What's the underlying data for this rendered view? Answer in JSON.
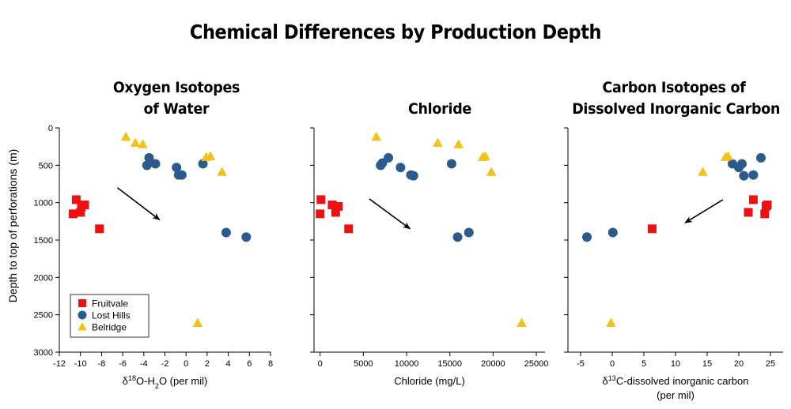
{
  "title": "Chemical Differences by Production Depth",
  "ylabel": "Depth to top of perforations (m)",
  "legend": [
    {
      "name": "Fruitvale",
      "marker": "square",
      "color": "#ee1111"
    },
    {
      "name": "Lost Hills",
      "marker": "circle",
      "color": "#2b5a8c"
    },
    {
      "name": "Belridge",
      "marker": "triangle",
      "color": "#f2c21b"
    }
  ],
  "chart_data": [
    {
      "type": "scatter",
      "title_lines": [
        "Oxygen Isotopes",
        "of Water"
      ],
      "xlabel": "δ18O-H2O (per mil)",
      "ylabel": "Depth to top of perforations (m)",
      "xlim": [
        -12,
        8
      ],
      "ylim": [
        3000,
        0
      ],
      "xticks": [
        -12,
        -10,
        -8,
        -6,
        -4,
        -2,
        0,
        2,
        4,
        6,
        8
      ],
      "yticks": [
        0,
        500,
        1000,
        1500,
        2000,
        2500,
        3000
      ],
      "legend_position": "bottom-left",
      "arrow": {
        "from": [
          -6.5,
          800
        ],
        "to": [
          -2.5,
          1230
        ]
      },
      "series": [
        {
          "name": "Fruitvale",
          "points": [
            [
              -10.4,
              960
            ],
            [
              -10.7,
              1150
            ],
            [
              -10.0,
              1130
            ],
            [
              -9.9,
              1050
            ],
            [
              -9.6,
              1030
            ],
            [
              -8.2,
              1350
            ]
          ]
        },
        {
          "name": "Lost Hills",
          "points": [
            [
              -3.5,
              400
            ],
            [
              -3.7,
              500
            ],
            [
              -2.9,
              480
            ],
            [
              -0.9,
              530
            ],
            [
              -0.7,
              630
            ],
            [
              -0.4,
              630
            ],
            [
              1.6,
              480
            ],
            [
              3.8,
              1400
            ],
            [
              5.7,
              1460
            ]
          ]
        },
        {
          "name": "Belridge",
          "points": [
            [
              -5.7,
              120
            ],
            [
              -4.8,
              200
            ],
            [
              -4.1,
              220
            ],
            [
              1.9,
              390
            ],
            [
              2.3,
              380
            ],
            [
              3.4,
              590
            ],
            [
              1.1,
              2610
            ]
          ]
        }
      ]
    },
    {
      "type": "scatter",
      "title_lines": [
        "Chloride"
      ],
      "xlabel": "Chloride (mg/L)",
      "xlim": [
        -700,
        26000
      ],
      "ylim": [
        3000,
        0
      ],
      "xticks": [
        0,
        5000,
        10000,
        15000,
        20000,
        25000
      ],
      "arrow": {
        "from": [
          5700,
          950
        ],
        "to": [
          10400,
          1350
        ]
      },
      "series": [
        {
          "name": "Fruitvale",
          "points": [
            [
              100,
              960
            ],
            [
              0,
              1150
            ],
            [
              1400,
              1030
            ],
            [
              1800,
              1130
            ],
            [
              2100,
              1050
            ],
            [
              3300,
              1350
            ]
          ]
        },
        {
          "name": "Lost Hills",
          "points": [
            [
              7000,
              500
            ],
            [
              7200,
              470
            ],
            [
              7900,
              400
            ],
            [
              9300,
              530
            ],
            [
              10500,
              630
            ],
            [
              10800,
              640
            ],
            [
              15200,
              480
            ],
            [
              15900,
              1460
            ],
            [
              17200,
              1400
            ]
          ]
        },
        {
          "name": "Belridge",
          "points": [
            [
              6500,
              120
            ],
            [
              13600,
              200
            ],
            [
              16000,
              220
            ],
            [
              18800,
              390
            ],
            [
              19100,
              380
            ],
            [
              19800,
              590
            ],
            [
              23300,
              2610
            ]
          ]
        }
      ]
    },
    {
      "type": "scatter",
      "title_lines": [
        "Carbon Isotopes of",
        "Dissolved Inorganic Carbon"
      ],
      "xlabel": "δ13C-dissolved inorganic carbon",
      "xlabel2": "(per mil)",
      "xlim": [
        -7,
        27
      ],
      "ylim": [
        3000,
        0
      ],
      "xticks": [
        -5,
        0,
        5,
        10,
        15,
        20,
        25
      ],
      "arrow": {
        "from": [
          17.5,
          960
        ],
        "to": [
          11.5,
          1270
        ]
      },
      "series": [
        {
          "name": "Fruitvale",
          "points": [
            [
              22.3,
              960
            ],
            [
              24.1,
              1150
            ],
            [
              24.5,
              1030
            ],
            [
              24.3,
              1050
            ],
            [
              21.5,
              1130
            ],
            [
              6.3,
              1350
            ]
          ]
        },
        {
          "name": "Lost Hills",
          "points": [
            [
              -4.0,
              1460
            ],
            [
              0.1,
              1400
            ],
            [
              19.0,
              480
            ],
            [
              20.0,
              530
            ],
            [
              20.5,
              480
            ],
            [
              20.8,
              640
            ],
            [
              22.3,
              630
            ],
            [
              23.5,
              400
            ]
          ]
        },
        {
          "name": "Belridge",
          "points": [
            [
              17.9,
              390
            ],
            [
              18.3,
              380
            ],
            [
              14.3,
              590
            ],
            [
              -0.2,
              2610
            ]
          ]
        }
      ]
    }
  ]
}
